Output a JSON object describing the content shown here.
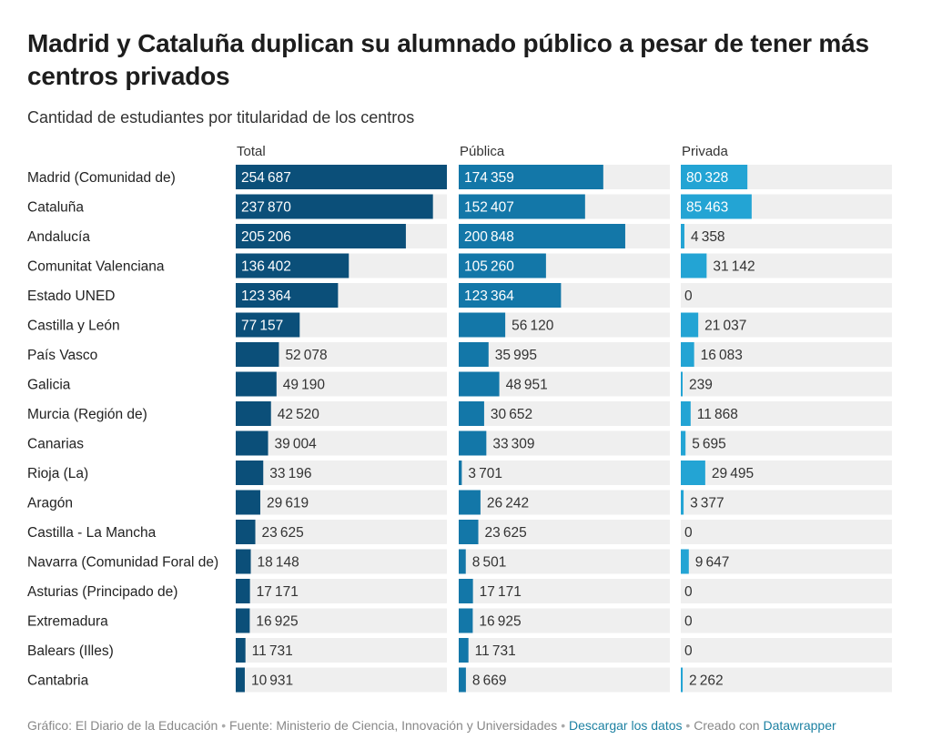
{
  "header": {
    "title": "Madrid y Cataluña duplican su alumnado público a pesar de tener más centros privados",
    "subtitle": "Cantidad de estudiantes por titularidad de los centros"
  },
  "colors": {
    "total": "#0b4f79",
    "publica": "#1377a8",
    "privada": "#23a4d4",
    "track": "#efefef",
    "link": "#1d81a2"
  },
  "footer": {
    "grafico": "Gráfico: El Diario de la Educación",
    "separator": "•",
    "fuente": "Fuente: Ministerio de Ciencia, Innovación y Universidades",
    "descargar": "Descargar los datos",
    "creado": "Creado con",
    "datawrapper": "Datawrapper"
  },
  "chart_data": {
    "type": "bar",
    "orientation": "horizontal",
    "columns": [
      "Total",
      "Pública",
      "Privada"
    ],
    "max": 254687,
    "number_format": "thousands separated by a space",
    "categories": [
      "Madrid (Comunidad de)",
      "Cataluña",
      "Andalucía",
      "Comunitat Valenciana",
      "Estado UNED",
      "Castilla y León",
      "País Vasco",
      "Galicia",
      "Murcia (Región de)",
      "Canarias",
      "Rioja (La)",
      "Aragón",
      "Castilla - La Mancha",
      "Navarra (Comunidad Foral de)",
      "Asturias (Principado de)",
      "Extremadura",
      "Balears (Illes)",
      "Cantabria"
    ],
    "series": [
      {
        "name": "Total",
        "values": [
          254687,
          237870,
          205206,
          136402,
          123364,
          77157,
          52078,
          49190,
          42520,
          39004,
          33196,
          29619,
          23625,
          18148,
          17171,
          16925,
          11731,
          10931
        ]
      },
      {
        "name": "Pública",
        "values": [
          174359,
          152407,
          200848,
          105260,
          123364,
          56120,
          35995,
          48951,
          30652,
          33309,
          3701,
          26242,
          23625,
          8501,
          17171,
          16925,
          11731,
          8669
        ]
      },
      {
        "name": "Privada",
        "values": [
          80328,
          85463,
          4358,
          31142,
          0,
          21037,
          16083,
          239,
          11868,
          5695,
          29495,
          3377,
          0,
          9647,
          0,
          0,
          0,
          2262
        ]
      }
    ]
  }
}
